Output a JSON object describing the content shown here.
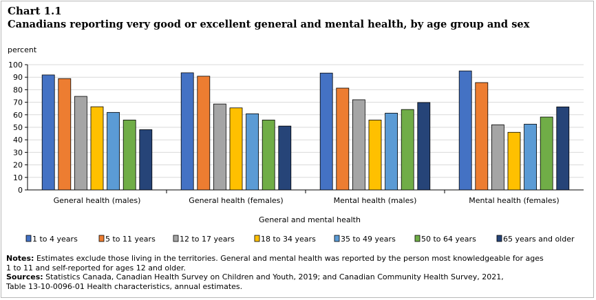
{
  "header": {
    "chart_number": "Chart 1.1",
    "title": "Canadians reporting very good or excellent general and mental health, by age group and sex"
  },
  "notes": {
    "notes_label": "Notes:",
    "notes_line1": "Estimates exclude those living in the territories. General and mental health was reported by the person most knowledgeable for ages",
    "notes_line2": "1 to 11 and self-reported for ages 12 and older.",
    "sources_label": "Sources:",
    "sources_line1": "Statistics Canada, Canadian Health Survey on Children and Youth, 2019; and Canadian Community Health Survey, 2021,",
    "sources_line2": "Table 13-10-0096-01 Health characteristics, annual estimates."
  },
  "chart_data": {
    "type": "bar",
    "ylabel": "percent",
    "xlabel": "General and mental health",
    "ylim": [
      0,
      100
    ],
    "yticks": [
      0,
      10,
      20,
      30,
      40,
      50,
      60,
      70,
      80,
      90,
      100
    ],
    "grid": true,
    "legend_position": "bottom",
    "categories": [
      "General health (males)",
      "General health (females)",
      "Mental health (males)",
      "Mental health (females)"
    ],
    "series": [
      {
        "name": "1 to 4 years",
        "color": "#4472c4",
        "values": [
          91.8,
          93.5,
          93.3,
          95.0
        ]
      },
      {
        "name": "5 to 11 years",
        "color": "#ed7d31",
        "values": [
          88.9,
          90.8,
          81.3,
          85.7
        ]
      },
      {
        "name": "12 to 17 years",
        "color": "#a5a5a5",
        "values": [
          74.7,
          68.6,
          72.0,
          52.0
        ]
      },
      {
        "name": "18 to 34 years",
        "color": "#ffc000",
        "values": [
          66.4,
          65.5,
          55.8,
          46.0
        ]
      },
      {
        "name": "35 to 49 years",
        "color": "#5b9bd5",
        "values": [
          61.9,
          60.8,
          61.3,
          52.5
        ]
      },
      {
        "name": "50 to 64 years",
        "color": "#70ad47",
        "values": [
          55.8,
          55.8,
          64.2,
          58.2
        ]
      },
      {
        "name": "65 years and older",
        "color": "#264478",
        "values": [
          48.1,
          51.0,
          69.8,
          66.3
        ]
      }
    ]
  }
}
